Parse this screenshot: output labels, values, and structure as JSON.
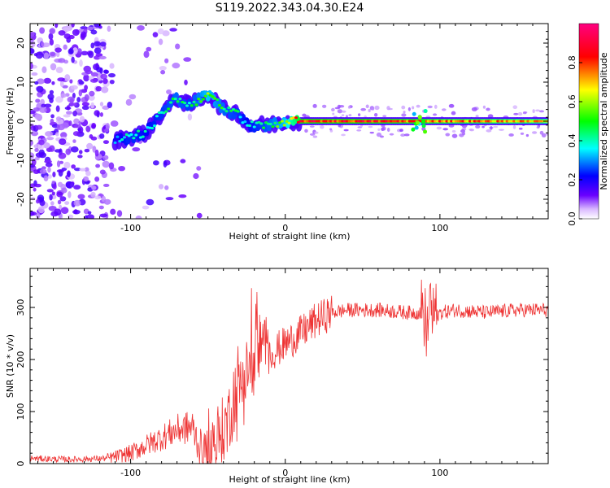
{
  "title": "S119.2022.343.04.30.E24",
  "chart_data": [
    {
      "type": "heatmap",
      "xlabel": "Height of straight line (km)",
      "ylabel": "Frequency (Hz)",
      "xlim": [
        -165,
        170
      ],
      "ylim": [
        -25,
        25
      ],
      "x_ticks": [
        -100,
        0,
        100
      ],
      "y_ticks": [
        -20,
        -10,
        0,
        10,
        20
      ],
      "colorbar": {
        "label": "Normalized spectral amplitude",
        "range": [
          0,
          1
        ],
        "ticks": [
          "0.0",
          "0.2",
          "0.4",
          "0.6",
          "0.8"
        ],
        "tick_values": [
          0,
          0.2,
          0.4,
          0.6,
          0.8
        ],
        "colors": [
          "#ffffff",
          "#6a00ff",
          "#0000ff",
          "#00ffff",
          "#00ff00",
          "#ffff00",
          "#ff0000",
          "#ff0080"
        ]
      },
      "ridge": [
        {
          "x": -110,
          "y": -5,
          "amp": 0.35
        },
        {
          "x": -100,
          "y": -4,
          "amp": 0.45
        },
        {
          "x": -90,
          "y": -3,
          "amp": 0.4
        },
        {
          "x": -80,
          "y": 2,
          "amp": 0.45
        },
        {
          "x": -70,
          "y": 6,
          "amp": 0.5
        },
        {
          "x": -62,
          "y": 4,
          "amp": 0.45
        },
        {
          "x": -50,
          "y": 7,
          "amp": 0.6
        },
        {
          "x": -40,
          "y": 3,
          "amp": 0.5
        },
        {
          "x": -30,
          "y": 2,
          "amp": 0.45
        },
        {
          "x": -25,
          "y": -1,
          "amp": 0.4
        },
        {
          "x": -10,
          "y": -1,
          "amp": 0.5
        },
        {
          "x": 0,
          "y": 0,
          "amp": 0.6
        },
        {
          "x": 10,
          "y": 0,
          "amp": 0.9
        },
        {
          "x": 50,
          "y": 0,
          "amp": 0.9
        },
        {
          "x": 90,
          "y": 0,
          "amp": 0.85
        },
        {
          "x": 130,
          "y": 0,
          "amp": 0.8
        },
        {
          "x": 170,
          "y": 0,
          "amp": 0.75
        }
      ]
    },
    {
      "type": "line",
      "xlabel": "Height of straight line (km)",
      "ylabel": "SNR (10 * v/v)",
      "xlim": [
        -165,
        170
      ],
      "ylim": [
        0,
        375
      ],
      "x_ticks": [
        -100,
        0,
        100
      ],
      "y_ticks": [
        0,
        100,
        200,
        300
      ],
      "series": [
        {
          "color": "#ee3333",
          "x": [
            -165,
            -140,
            -115,
            -100,
            -90,
            -80,
            -70,
            -60,
            -55,
            -50,
            -40,
            -30,
            -20,
            -18,
            -10,
            0,
            10,
            20,
            30,
            40,
            60,
            80,
            90,
            95,
            100,
            110,
            130,
            150,
            170
          ],
          "y": [
            10,
            8,
            10,
            20,
            35,
            50,
            65,
            70,
            30,
            25,
            60,
            150,
            200,
            220,
            210,
            230,
            250,
            275,
            290,
            295,
            295,
            290,
            290,
            275,
            290,
            295,
            290,
            295,
            295
          ]
        }
      ]
    }
  ]
}
